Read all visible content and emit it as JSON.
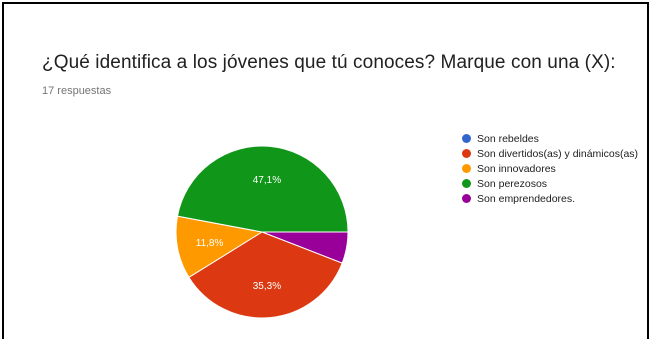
{
  "form": {
    "question": "¿Qué identifica a los jóvenes que tú conoces? Marque con una (X):",
    "responses_label": "17 respuestas"
  },
  "chart_data": {
    "type": "pie",
    "title": "¿Qué identifica a los jóvenes que tú conoces? Marque con una (X):",
    "categories": [
      "Son rebeldes",
      "Son divertidos(as) y dinámicos(as)",
      "Son innovadores",
      "Son perezosos",
      "Son emprendedores."
    ],
    "values": [
      0,
      35.3,
      11.8,
      47.1,
      5.9
    ],
    "data_labels": [
      "",
      "35,3%",
      "11,8%",
      "47,1%",
      ""
    ],
    "colors": [
      "#3366cc",
      "#dc3912",
      "#ff9900",
      "#109618",
      "#990099"
    ],
    "legend_position": "right"
  }
}
